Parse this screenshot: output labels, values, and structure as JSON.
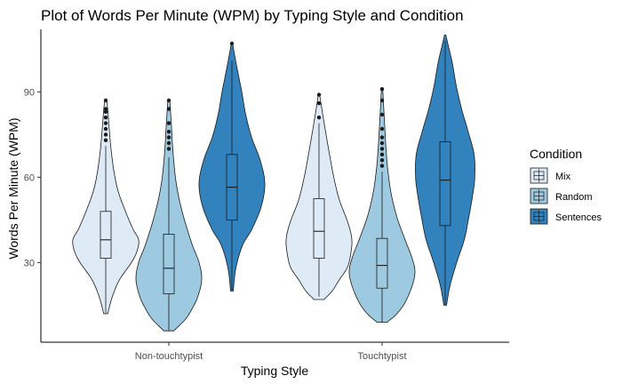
{
  "chart_data": {
    "type": "violin",
    "title": "Plot of Words Per Minute (WPM) by Typing Style and Condition",
    "xlabel": "Typing Style",
    "ylabel": "Words Per Minute (WPM)",
    "categories": [
      "Non-touchtypist",
      "Touchtypist"
    ],
    "ylim": [
      2,
      112
    ],
    "yticks": [
      30,
      60,
      90
    ],
    "grid": false,
    "legend": {
      "title": "Condition",
      "position": "right"
    },
    "series": [
      {
        "name": "Mix",
        "color": "#deebf7",
        "groups": [
          {
            "category": "Non-touchtypist",
            "min": 12,
            "q1": 31.5,
            "median": 38,
            "q3": 48,
            "max": 71,
            "outliers": [
              73,
              75,
              77,
              79,
              81,
              83,
              84,
              87
            ],
            "violin_range": [
              12,
              87
            ],
            "density": [
              [
                12,
                0.06
              ],
              [
                18,
                0.2
              ],
              [
                24,
                0.42
              ],
              [
                30,
                0.78
              ],
              [
                34,
                0.95
              ],
              [
                38,
                1.0
              ],
              [
                42,
                0.82
              ],
              [
                48,
                0.6
              ],
              [
                55,
                0.38
              ],
              [
                62,
                0.25
              ],
              [
                70,
                0.16
              ],
              [
                78,
                0.1
              ],
              [
                84,
                0.06
              ],
              [
                87,
                0.03
              ]
            ]
          },
          {
            "category": "Touchtypist",
            "min": 18,
            "q1": 31.5,
            "median": 41,
            "q3": 52.5,
            "max": 79,
            "outliers": [
              81,
              86,
              89
            ],
            "violin_range": [
              17,
              89
            ],
            "density": [
              [
                17,
                0.15
              ],
              [
                20,
                0.4
              ],
              [
                24,
                0.62
              ],
              [
                28,
                0.85
              ],
              [
                32,
                0.95
              ],
              [
                38,
                1.0
              ],
              [
                44,
                0.88
              ],
              [
                52,
                0.62
              ],
              [
                60,
                0.45
              ],
              [
                68,
                0.32
              ],
              [
                76,
                0.2
              ],
              [
                83,
                0.1
              ],
              [
                89,
                0.02
              ]
            ]
          }
        ]
      },
      {
        "name": "Random",
        "color": "#9ecae1",
        "groups": [
          {
            "category": "Non-touchtypist",
            "min": 6,
            "q1": 19,
            "median": 28,
            "q3": 40,
            "max": 67,
            "outliers": [
              70,
              72,
              74,
              76,
              79,
              84,
              87
            ],
            "violin_range": [
              6,
              87
            ],
            "density": [
              [
                6,
                0.15
              ],
              [
                10,
                0.5
              ],
              [
                14,
                0.72
              ],
              [
                18,
                0.88
              ],
              [
                24,
                1.0
              ],
              [
                30,
                0.92
              ],
              [
                36,
                0.72
              ],
              [
                44,
                0.5
              ],
              [
                52,
                0.32
              ],
              [
                60,
                0.2
              ],
              [
                70,
                0.12
              ],
              [
                78,
                0.08
              ],
              [
                87,
                0.03
              ]
            ]
          },
          {
            "category": "Touchtypist",
            "min": 9,
            "q1": 21,
            "median": 29,
            "q3": 38.5,
            "max": 62,
            "outliers": [
              64,
              66,
              68,
              70,
              72,
              74,
              77,
              82,
              87,
              91
            ],
            "violin_range": [
              9,
              91
            ],
            "density": [
              [
                9,
                0.15
              ],
              [
                12,
                0.45
              ],
              [
                16,
                0.7
              ],
              [
                22,
                0.92
              ],
              [
                27,
                1.0
              ],
              [
                32,
                0.9
              ],
              [
                38,
                0.7
              ],
              [
                46,
                0.45
              ],
              [
                54,
                0.28
              ],
              [
                62,
                0.18
              ],
              [
                70,
                0.12
              ],
              [
                80,
                0.07
              ],
              [
                91,
                0.02
              ]
            ]
          }
        ]
      },
      {
        "name": "Sentences",
        "color": "#3182bd",
        "groups": [
          {
            "category": "Non-touchtypist",
            "min": 20,
            "q1": 45,
            "median": 56.5,
            "q3": 68,
            "max": 101,
            "outliers": [
              107
            ],
            "violin_range": [
              20,
              107
            ],
            "density": [
              [
                20,
                0.04
              ],
              [
                28,
                0.12
              ],
              [
                36,
                0.32
              ],
              [
                42,
                0.62
              ],
              [
                50,
                0.9
              ],
              [
                58,
                1.0
              ],
              [
                66,
                0.86
              ],
              [
                74,
                0.6
              ],
              [
                82,
                0.42
              ],
              [
                90,
                0.3
              ],
              [
                97,
                0.18
              ],
              [
                103,
                0.08
              ],
              [
                107,
                0.02
              ]
            ]
          },
          {
            "category": "Touchtypist",
            "min": 15,
            "q1": 43,
            "median": 59,
            "q3": 72.5,
            "max": 108,
            "outliers": [],
            "violin_range": [
              15,
              110
            ],
            "density": [
              [
                15,
                0.04
              ],
              [
                22,
                0.15
              ],
              [
                30,
                0.35
              ],
              [
                38,
                0.58
              ],
              [
                46,
                0.72
              ],
              [
                54,
                0.84
              ],
              [
                60,
                0.9
              ],
              [
                68,
                0.88
              ],
              [
                76,
                0.7
              ],
              [
                84,
                0.5
              ],
              [
                92,
                0.34
              ],
              [
                100,
                0.22
              ],
              [
                106,
                0.1
              ],
              [
                110,
                0.02
              ]
            ]
          }
        ]
      }
    ]
  }
}
